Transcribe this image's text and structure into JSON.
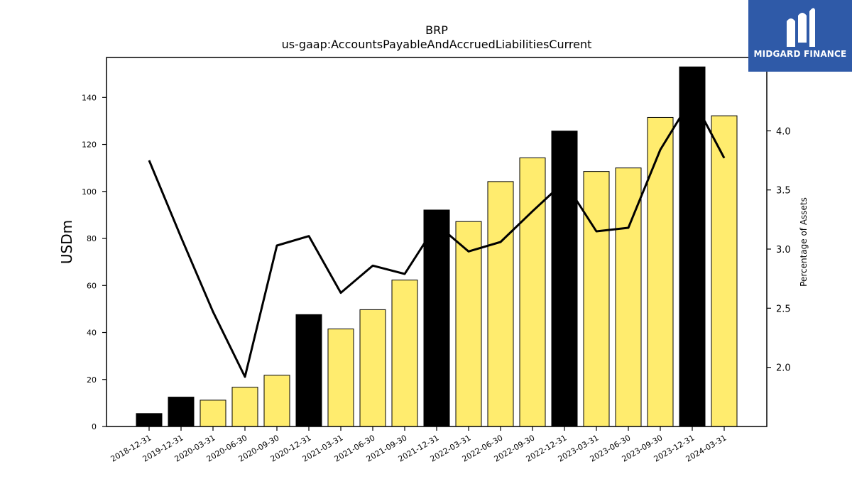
{
  "chart_data": {
    "type": "bar",
    "title": "BRP",
    "subtitle": "us-gaap:AccountsPayableAndAccruedLiabilitiesCurrent",
    "ylabel": "USDm",
    "y2label": "Percentage of Assets",
    "categories": [
      "2018-12-31",
      "2019-12-31",
      "2020-03-31",
      "2020-06-30",
      "2020-09-30",
      "2020-12-31",
      "2021-03-31",
      "2021-06-30",
      "2021-09-30",
      "2021-12-31",
      "2022-03-31",
      "2022-06-30",
      "2022-09-30",
      "2022-12-31",
      "2023-03-31",
      "2023-06-30",
      "2023-09-30",
      "2023-12-31",
      "2024-03-31"
    ],
    "series": [
      {
        "type": "bar",
        "axis": "left",
        "values": [
          5.5,
          12.5,
          11.2,
          16.7,
          21.8,
          47.6,
          41.5,
          49.7,
          62.3,
          92.1,
          87.2,
          104.2,
          114.3,
          125.7,
          108.5,
          110.0,
          131.5,
          153.0,
          132.2
        ],
        "colors": [
          "#000000",
          "#000000",
          "#ffec6e",
          "#ffec6e",
          "#ffec6e",
          "#000000",
          "#ffec6e",
          "#ffec6e",
          "#ffec6e",
          "#000000",
          "#ffec6e",
          "#ffec6e",
          "#ffec6e",
          "#000000",
          "#ffec6e",
          "#ffec6e",
          "#ffec6e",
          "#000000",
          "#ffec6e"
        ]
      },
      {
        "type": "line",
        "axis": "right",
        "color": "#000000",
        "values": [
          3.75,
          3.1,
          2.47,
          1.92,
          3.03,
          3.11,
          2.63,
          2.86,
          2.79,
          3.21,
          2.98,
          3.06,
          3.32,
          3.57,
          3.15,
          3.18,
          3.84,
          4.28,
          3.77
        ]
      }
    ],
    "ylim": [
      0,
      157
    ],
    "y2lim": [
      1.5,
      4.62
    ],
    "yticks": [
      0,
      20,
      40,
      60,
      80,
      100,
      120,
      140
    ],
    "y2ticks": [
      "2.0",
      "2.5",
      "3.0",
      "3.5",
      "4.0"
    ],
    "grid": false
  },
  "logo": {
    "text": "MIDGARD FINANCE",
    "color": "#2f5aa8"
  }
}
